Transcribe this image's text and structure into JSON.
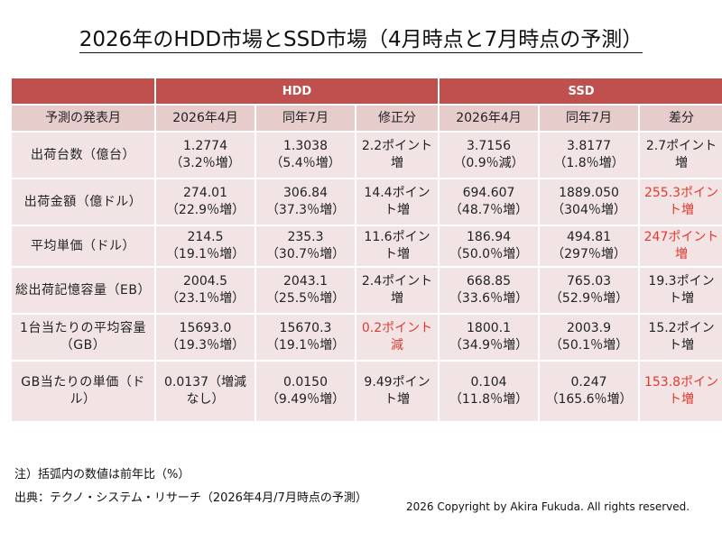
{
  "title": "2026年のHDD市場とSSD市場（4月時点と7月時点の予測）",
  "table": {
    "groups": [
      "HDD",
      "SSD"
    ],
    "subheaders": [
      "予測の発表月",
      "2026年4月",
      "同年7月",
      "修正分",
      "2026年4月",
      "同年7月",
      "差分"
    ],
    "rows": [
      {
        "label": "出荷台数（億台）",
        "cells": [
          {
            "text": "1.2774\n（3.2％増）"
          },
          {
            "text": "1.3038\n（5.4％増）"
          },
          {
            "text": "2.2ポイント増"
          },
          {
            "text": "3.7156\n（0.9％減）"
          },
          {
            "text": "3.8177\n（1.8％増）"
          },
          {
            "text": "2.7ポイント増"
          }
        ]
      },
      {
        "label": "出荷金額（億ドル）",
        "cells": [
          {
            "text": "274.01\n（22.9％増）"
          },
          {
            "text": "306.84\n（37.3％増）"
          },
          {
            "text": "14.4ポイント増"
          },
          {
            "text": "694.607\n（48.7％増）"
          },
          {
            "text": "1889.050\n（304％増）"
          },
          {
            "text": "255.3ポイント増",
            "red": true
          }
        ]
      },
      {
        "label": "平均単価（ドル）",
        "cells": [
          {
            "text": "214.5\n（19.1％増）"
          },
          {
            "text": "235.3\n（30.7％増）"
          },
          {
            "text": "11.6ポイント増"
          },
          {
            "text": "186.94\n（50.0％増）"
          },
          {
            "text": "494.81\n（297％増）"
          },
          {
            "text": "247ポイント増",
            "red": true
          }
        ]
      },
      {
        "label": "総出荷記憶容量（EB）",
        "cells": [
          {
            "text": "2004.5\n（23.1％増）"
          },
          {
            "text": "2043.1\n（25.5％増）"
          },
          {
            "text": "2.4ポイント増"
          },
          {
            "text": "668.85\n（33.6％増）"
          },
          {
            "text": "765.03\n（52.9％増）"
          },
          {
            "text": "19.3ポイント増"
          }
        ]
      },
      {
        "label": "1台当たりの平均容量（GB）",
        "cells": [
          {
            "text": "15693.0\n（19.3％増）"
          },
          {
            "text": "15670.3\n（19.1％増）"
          },
          {
            "text": "0.2ポイント減",
            "red": true
          },
          {
            "text": "1800.1\n（34.9％増）"
          },
          {
            "text": "2003.9\n（50.1％増）"
          },
          {
            "text": "15.2ポイント増"
          }
        ]
      },
      {
        "label": "GB当たりの単価（ドル）",
        "cells": [
          {
            "text": "0.0137（増減なし）"
          },
          {
            "text": "0.0150\n（9.49％増）"
          },
          {
            "text": "9.49ポイント増"
          },
          {
            "text": "0.104\n（11.8％増）"
          },
          {
            "text": "0.247\n（165.6％増）"
          },
          {
            "text": "153.8ポイント増",
            "red": true
          }
        ]
      }
    ]
  },
  "notes": [
    "注）括弧内の数値は前年比（%）",
    "出典：テクノ・システム・リサーチ（2026年4月/7月時点の予測）"
  ],
  "copyright": "2026 Copyright by Akira Fukuda.  All rights reserved."
}
